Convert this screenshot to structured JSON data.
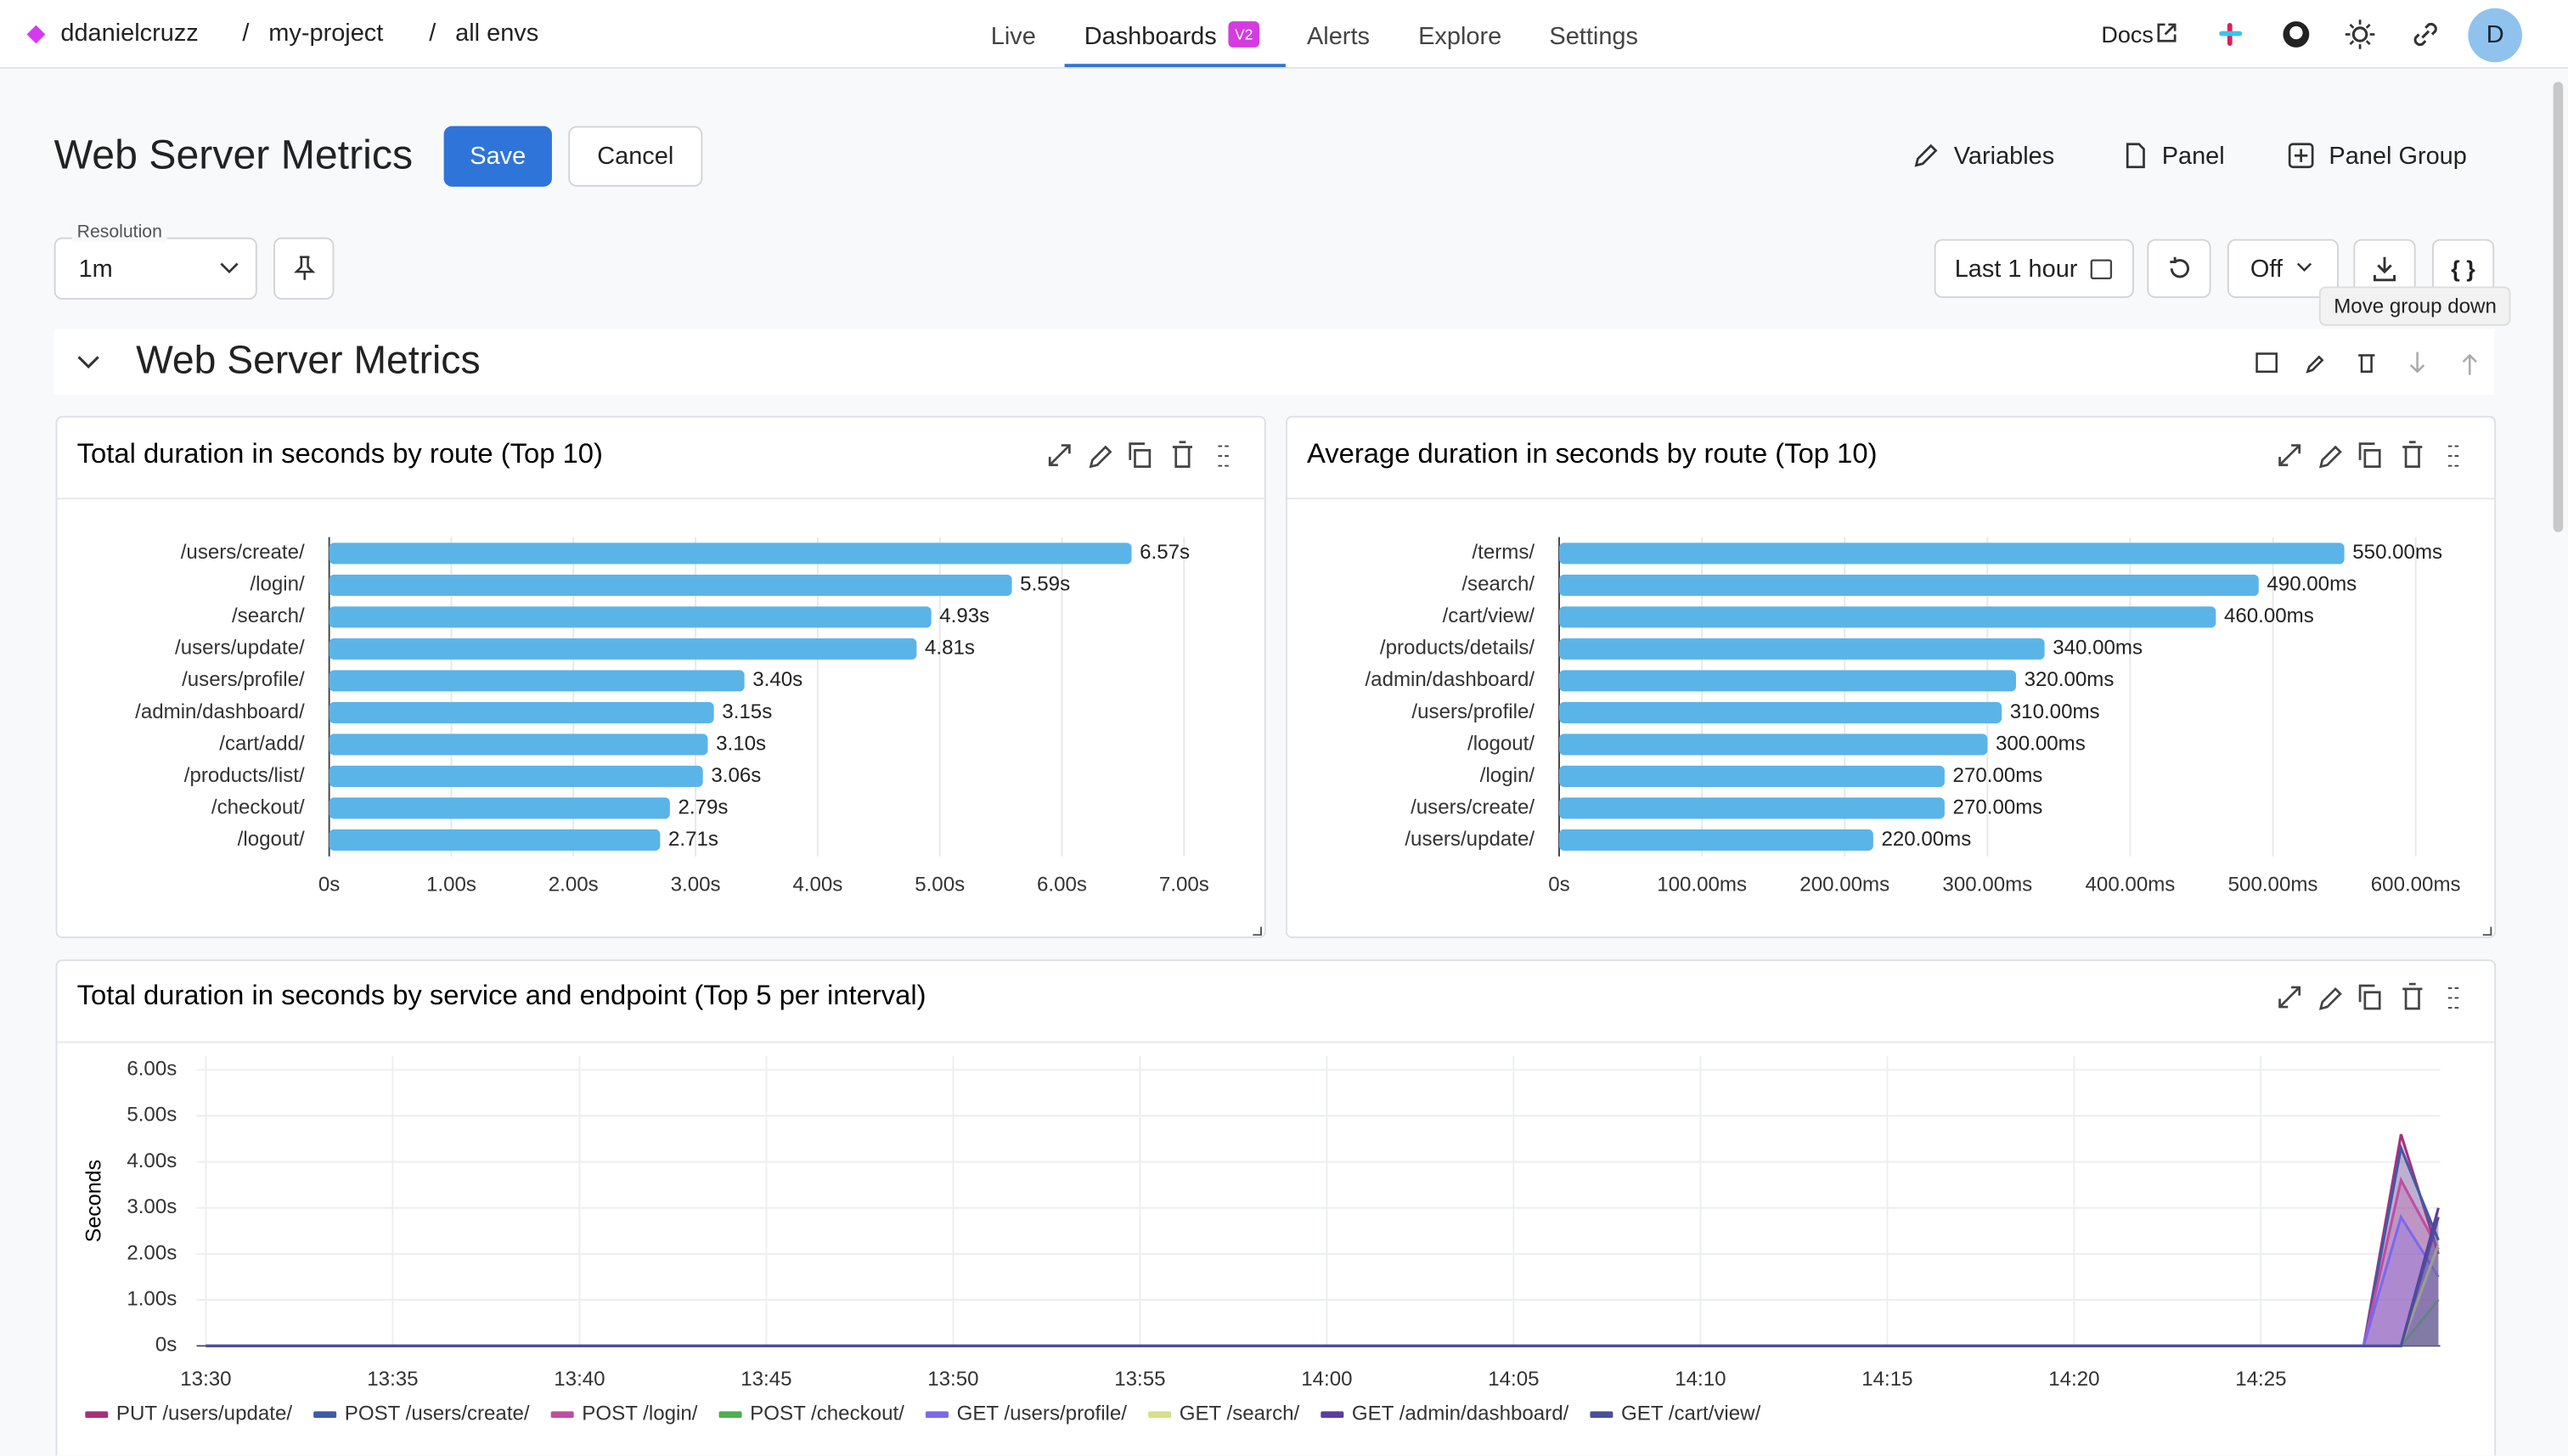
{
  "nav": {
    "org": "ddanielcruzz",
    "separator": "/",
    "project": "my-project",
    "env": "all envs",
    "tabs": [
      "Live",
      "Dashboards",
      "Alerts",
      "Explore",
      "Settings"
    ],
    "badge": "V2",
    "docs": "Docs",
    "avatar": "D"
  },
  "header": {
    "title": "Web Server Metrics",
    "save": "Save",
    "cancel": "Cancel",
    "actions": [
      "Variables",
      "Panel",
      "Panel Group"
    ]
  },
  "toolbar": {
    "resolution_label": "Resolution",
    "resolution": "1m",
    "time_range": "Last 1 hour",
    "refresh": "Off",
    "json": "{ }",
    "tooltip": "Move group down"
  },
  "group": {
    "title": "Web Server Metrics"
  },
  "chart_data": [
    {
      "type": "bar",
      "orientation": "horizontal",
      "title": "Total duration in seconds by route (Top 10)",
      "categories": [
        "/users/create/",
        "/login/",
        "/search/",
        "/users/update/",
        "/users/profile/",
        "/admin/dashboard/",
        "/cart/add/",
        "/products/list/",
        "/checkout/",
        "/logout/"
      ],
      "values": [
        6.57,
        5.59,
        4.93,
        4.81,
        3.4,
        3.15,
        3.1,
        3.06,
        2.79,
        2.71
      ],
      "value_labels": [
        "6.57s",
        "5.59s",
        "4.93s",
        "4.81s",
        "3.40s",
        "3.15s",
        "3.10s",
        "3.06s",
        "2.79s",
        "2.71s"
      ],
      "color": "#5ab4e8",
      "xlim": [
        0,
        7.4
      ],
      "xticks": [
        {
          "value": 0,
          "label": "0s"
        },
        {
          "value": 1,
          "label": "1.00s"
        },
        {
          "value": 2,
          "label": "2.00s"
        },
        {
          "value": 3,
          "label": "3.00s"
        },
        {
          "value": 4,
          "label": "4.00s"
        },
        {
          "value": 5,
          "label": "5.00s"
        },
        {
          "value": 6,
          "label": "6.00s"
        },
        {
          "value": 7,
          "label": "7.00s"
        }
      ],
      "grid": true
    },
    {
      "type": "bar",
      "orientation": "horizontal",
      "title": "Average duration in seconds by route (Top 10)",
      "categories": [
        "/terms/",
        "/search/",
        "/cart/view/",
        "/products/details/",
        "/admin/dashboard/",
        "/users/profile/",
        "/logout/",
        "/login/",
        "/users/create/",
        "/users/update/"
      ],
      "values": [
        550,
        490,
        460,
        340,
        320,
        310,
        300,
        270,
        270,
        220
      ],
      "value_labels": [
        "550.00ms",
        "490.00ms",
        "460.00ms",
        "340.00ms",
        "320.00ms",
        "310.00ms",
        "300.00ms",
        "270.00ms",
        "270.00ms",
        "220.00ms"
      ],
      "color": "#5ab4e8",
      "xlim": [
        0,
        630
      ],
      "xticks": [
        {
          "value": 0,
          "label": "0s"
        },
        {
          "value": 100,
          "label": "100.00ms"
        },
        {
          "value": 200,
          "label": "200.00ms"
        },
        {
          "value": 300,
          "label": "300.00ms"
        },
        {
          "value": 400,
          "label": "400.00ms"
        },
        {
          "value": 500,
          "label": "500.00ms"
        },
        {
          "value": 600,
          "label": "600.00ms"
        }
      ],
      "grid": true
    },
    {
      "type": "area",
      "title": "Total duration in seconds by service and endpoint (Top 5 per interval)",
      "ylabel": "Seconds",
      "x": [
        810,
        867.75,
        868.75,
        869.75
      ],
      "xlim": [
        809.75,
        869.8
      ],
      "xticks": [
        {
          "value": 810,
          "label": "13:30"
        },
        {
          "value": 815,
          "label": "13:35"
        },
        {
          "value": 820,
          "label": "13:40"
        },
        {
          "value": 825,
          "label": "13:45"
        },
        {
          "value": 830,
          "label": "13:50"
        },
        {
          "value": 835,
          "label": "13:55"
        },
        {
          "value": 840,
          "label": "14:00"
        },
        {
          "value": 845,
          "label": "14:05"
        },
        {
          "value": 850,
          "label": "14:10"
        },
        {
          "value": 855,
          "label": "14:15"
        },
        {
          "value": 860,
          "label": "14:20"
        },
        {
          "value": 865,
          "label": "14:25"
        }
      ],
      "ylim": [
        0,
        6.3
      ],
      "yticks": [
        {
          "value": 0,
          "label": "0s"
        },
        {
          "value": 1,
          "label": "1.00s"
        },
        {
          "value": 2,
          "label": "2.00s"
        },
        {
          "value": 3,
          "label": "3.00s"
        },
        {
          "value": 4,
          "label": "4.00s"
        },
        {
          "value": 5,
          "label": "5.00s"
        },
        {
          "value": 6,
          "label": "6.00s"
        }
      ],
      "grid": true,
      "series": [
        {
          "name": "PUT /users/update/",
          "color": "#a8307a",
          "values": [
            0,
            0,
            4.6,
            2.0
          ]
        },
        {
          "name": "POST /users/create/",
          "color": "#3f5aa8",
          "values": [
            0,
            0,
            4.3,
            2.3
          ]
        },
        {
          "name": "POST /login/",
          "color": "#c04da0",
          "values": [
            0,
            0,
            3.6,
            2.1
          ]
        },
        {
          "name": "POST /checkout/",
          "color": "#4caf50",
          "values": [
            0,
            0,
            0,
            1.0
          ]
        },
        {
          "name": "GET /users/profile/",
          "color": "#7b68ee",
          "values": [
            0,
            0,
            2.8,
            1.5
          ]
        },
        {
          "name": "GET /search/",
          "color": "#d4e08a",
          "values": [
            0,
            0,
            0,
            2.2
          ]
        },
        {
          "name": "GET /admin/dashboard/",
          "color": "#5a3ea0",
          "values": [
            0,
            0,
            0,
            3.0
          ]
        },
        {
          "name": "GET /cart/view/",
          "color": "#4a4f9a",
          "values": [
            0,
            0,
            0,
            2.8
          ]
        }
      ]
    }
  ]
}
